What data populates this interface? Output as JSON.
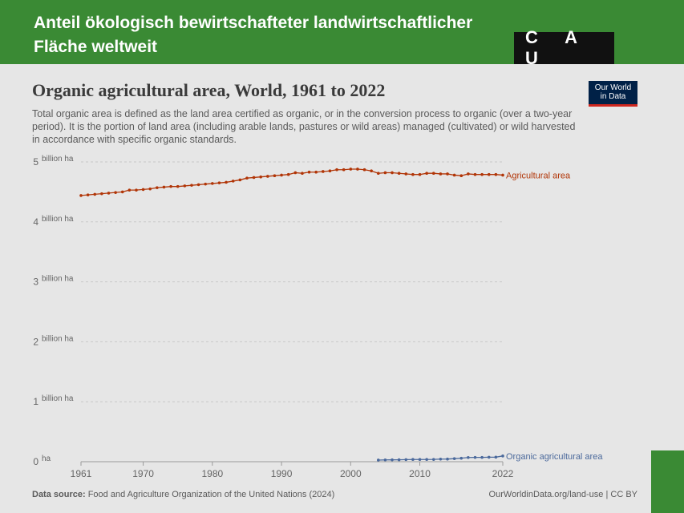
{
  "banner": {
    "title": "Anteil ökologisch  bewirtschafteter landwirtschaftlicher Fläche weltweit",
    "logo": "C A U"
  },
  "header": {
    "title": "Organic agricultural area, World, 1961 to 2022",
    "subtitle": "Total organic area is defined as the land area certified as organic, or in the conversion process to organic (over a two-year period). It is the portion of land area (including arable lands, pastures or wild areas) managed (cultivated) or wild harvested in accordance with specific organic standards.",
    "owid_logo_line1": "Our World",
    "owid_logo_line2": "in Data"
  },
  "footer": {
    "source_label": "Data source:",
    "source_text": "Food and Agriculture Organization of the United Nations (2024)",
    "right_text": "OurWorldinData.org/land-use | CC BY"
  },
  "chart_data": {
    "type": "line",
    "title": "Organic agricultural area, World, 1961 to 2022",
    "xlabel": "",
    "ylabel": "",
    "xlim": [
      1960,
      2022
    ],
    "ylim": [
      0,
      5
    ],
    "x_ticks": [
      1961,
      1970,
      1980,
      1990,
      2000,
      2010,
      2022
    ],
    "y_ticks": [
      {
        "value": 0,
        "label": "0"
      },
      {
        "value": 1,
        "label": "1"
      },
      {
        "value": 2,
        "label": "2"
      },
      {
        "value": 3,
        "label": "3"
      },
      {
        "value": 4,
        "label": "4"
      },
      {
        "value": 5,
        "label": "5"
      }
    ],
    "y_unit": "billion ha",
    "zero_unit": "ha",
    "grid": true,
    "series": [
      {
        "name": "Agricultural area",
        "color": "#b13507",
        "x": [
          1961,
          1962,
          1963,
          1964,
          1965,
          1966,
          1967,
          1968,
          1969,
          1970,
          1971,
          1972,
          1973,
          1974,
          1975,
          1976,
          1977,
          1978,
          1979,
          1980,
          1981,
          1982,
          1983,
          1984,
          1985,
          1986,
          1987,
          1988,
          1989,
          1990,
          1991,
          1992,
          1993,
          1994,
          1995,
          1996,
          1997,
          1998,
          1999,
          2000,
          2001,
          2002,
          2003,
          2004,
          2005,
          2006,
          2007,
          2008,
          2009,
          2010,
          2011,
          2012,
          2013,
          2014,
          2015,
          2016,
          2017,
          2018,
          2019,
          2020,
          2021,
          2022
        ],
        "values": [
          4.44,
          4.45,
          4.46,
          4.47,
          4.48,
          4.49,
          4.5,
          4.53,
          4.53,
          4.54,
          4.55,
          4.57,
          4.58,
          4.59,
          4.59,
          4.6,
          4.61,
          4.62,
          4.63,
          4.64,
          4.65,
          4.66,
          4.68,
          4.7,
          4.73,
          4.74,
          4.75,
          4.76,
          4.77,
          4.78,
          4.79,
          4.82,
          4.81,
          4.83,
          4.83,
          4.84,
          4.85,
          4.87,
          4.87,
          4.88,
          4.88,
          4.87,
          4.85,
          4.81,
          4.82,
          4.82,
          4.81,
          4.8,
          4.79,
          4.79,
          4.81,
          4.81,
          4.8,
          4.8,
          4.78,
          4.77,
          4.8,
          4.79,
          4.79,
          4.79,
          4.79,
          4.78
        ]
      },
      {
        "name": "Organic agricultural area",
        "color": "#4c6a9c",
        "x": [
          2004,
          2005,
          2006,
          2007,
          2008,
          2009,
          2010,
          2011,
          2012,
          2013,
          2014,
          2015,
          2016,
          2017,
          2018,
          2019,
          2020,
          2021,
          2022
        ],
        "values": [
          0.027,
          0.03,
          0.031,
          0.032,
          0.035,
          0.037,
          0.037,
          0.037,
          0.038,
          0.043,
          0.044,
          0.051,
          0.058,
          0.07,
          0.072,
          0.072,
          0.075,
          0.076,
          0.096
        ]
      }
    ]
  }
}
